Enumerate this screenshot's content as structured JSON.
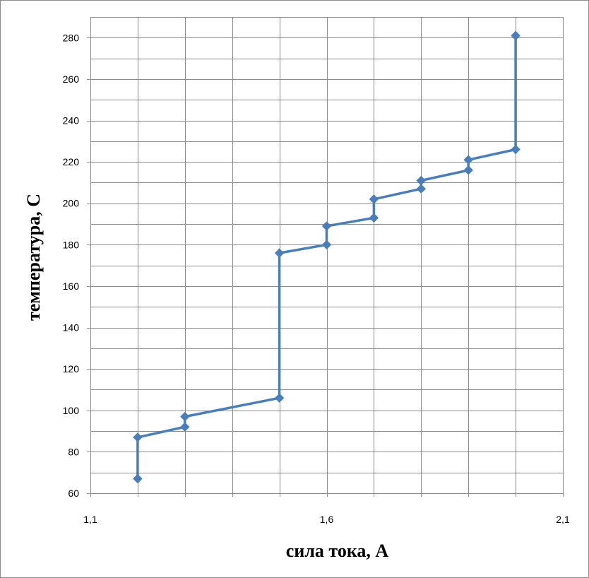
{
  "chart_data": {
    "type": "scatter",
    "title": "",
    "xlabel": "сила тока, А",
    "ylabel": "температура, С",
    "xlim": [
      1.1,
      2.1
    ],
    "ylim": [
      60,
      290
    ],
    "x_ticks": [
      1.1,
      1.6,
      2.1
    ],
    "x_tick_labels": [
      "1,1",
      "1,6",
      "2,1"
    ],
    "x_minor_step": 0.1,
    "y_ticks": [
      60,
      80,
      100,
      120,
      140,
      160,
      180,
      200,
      220,
      240,
      260,
      280
    ],
    "y_tick_labels": [
      "60",
      "80",
      "100",
      "120",
      "140",
      "160",
      "180",
      "200",
      "220",
      "240",
      "260",
      "280"
    ],
    "grid": true,
    "legend": "none",
    "series": [
      {
        "color": "#4a7ebb",
        "marker": "diamond",
        "points": [
          {
            "x": 1.2,
            "y": 67
          },
          {
            "x": 1.2,
            "y": 87
          },
          {
            "x": 1.3,
            "y": 92
          },
          {
            "x": 1.3,
            "y": 97
          },
          {
            "x": 1.5,
            "y": 106
          },
          {
            "x": 1.5,
            "y": 176
          },
          {
            "x": 1.6,
            "y": 180
          },
          {
            "x": 1.6,
            "y": 189
          },
          {
            "x": 1.7,
            "y": 193
          },
          {
            "x": 1.7,
            "y": 202
          },
          {
            "x": 1.8,
            "y": 207
          },
          {
            "x": 1.8,
            "y": 211
          },
          {
            "x": 1.9,
            "y": 216
          },
          {
            "x": 1.9,
            "y": 221
          },
          {
            "x": 2.0,
            "y": 226
          },
          {
            "x": 2.0,
            "y": 281
          }
        ]
      }
    ]
  }
}
